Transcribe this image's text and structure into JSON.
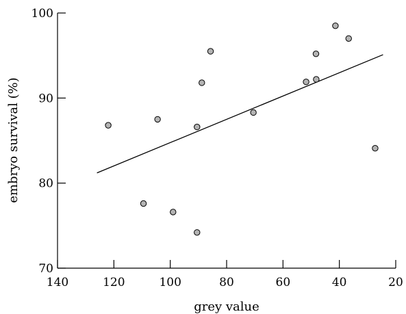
{
  "chart_data": {
    "type": "scatter",
    "title": "",
    "xlabel": "grey value",
    "ylabel": "embryo survival (%)",
    "xlim": [
      140,
      20
    ],
    "ylim": [
      70,
      100
    ],
    "x_reversed": true,
    "grid": false,
    "x_ticks": [
      "140",
      "120",
      "100",
      "80",
      "60",
      "40",
      "20"
    ],
    "y_ticks": [
      "70",
      "80",
      "90",
      "100"
    ],
    "points": [
      {
        "x": 122,
        "y": 86.8
      },
      {
        "x": 109.5,
        "y": 77.6
      },
      {
        "x": 104.5,
        "y": 87.5
      },
      {
        "x": 99,
        "y": 76.6
      },
      {
        "x": 90.5,
        "y": 86.6
      },
      {
        "x": 90.5,
        "y": 74.2
      },
      {
        "x": 88.8,
        "y": 91.8
      },
      {
        "x": 85.7,
        "y": 95.5
      },
      {
        "x": 70.5,
        "y": 88.3
      },
      {
        "x": 51.8,
        "y": 91.9
      },
      {
        "x": 48.3,
        "y": 95.2
      },
      {
        "x": 48.2,
        "y": 92.2
      },
      {
        "x": 41.4,
        "y": 98.5
      },
      {
        "x": 36.7,
        "y": 97
      },
      {
        "x": 27.3,
        "y": 84.1
      }
    ],
    "trend_line": [
      {
        "x": 126,
        "y": 81.2
      },
      {
        "x": 24.5,
        "y": 95.1
      }
    ],
    "colors": {
      "marker_fill": "#b3b3b3",
      "marker_stroke": "#000000",
      "line": "#000000"
    }
  }
}
